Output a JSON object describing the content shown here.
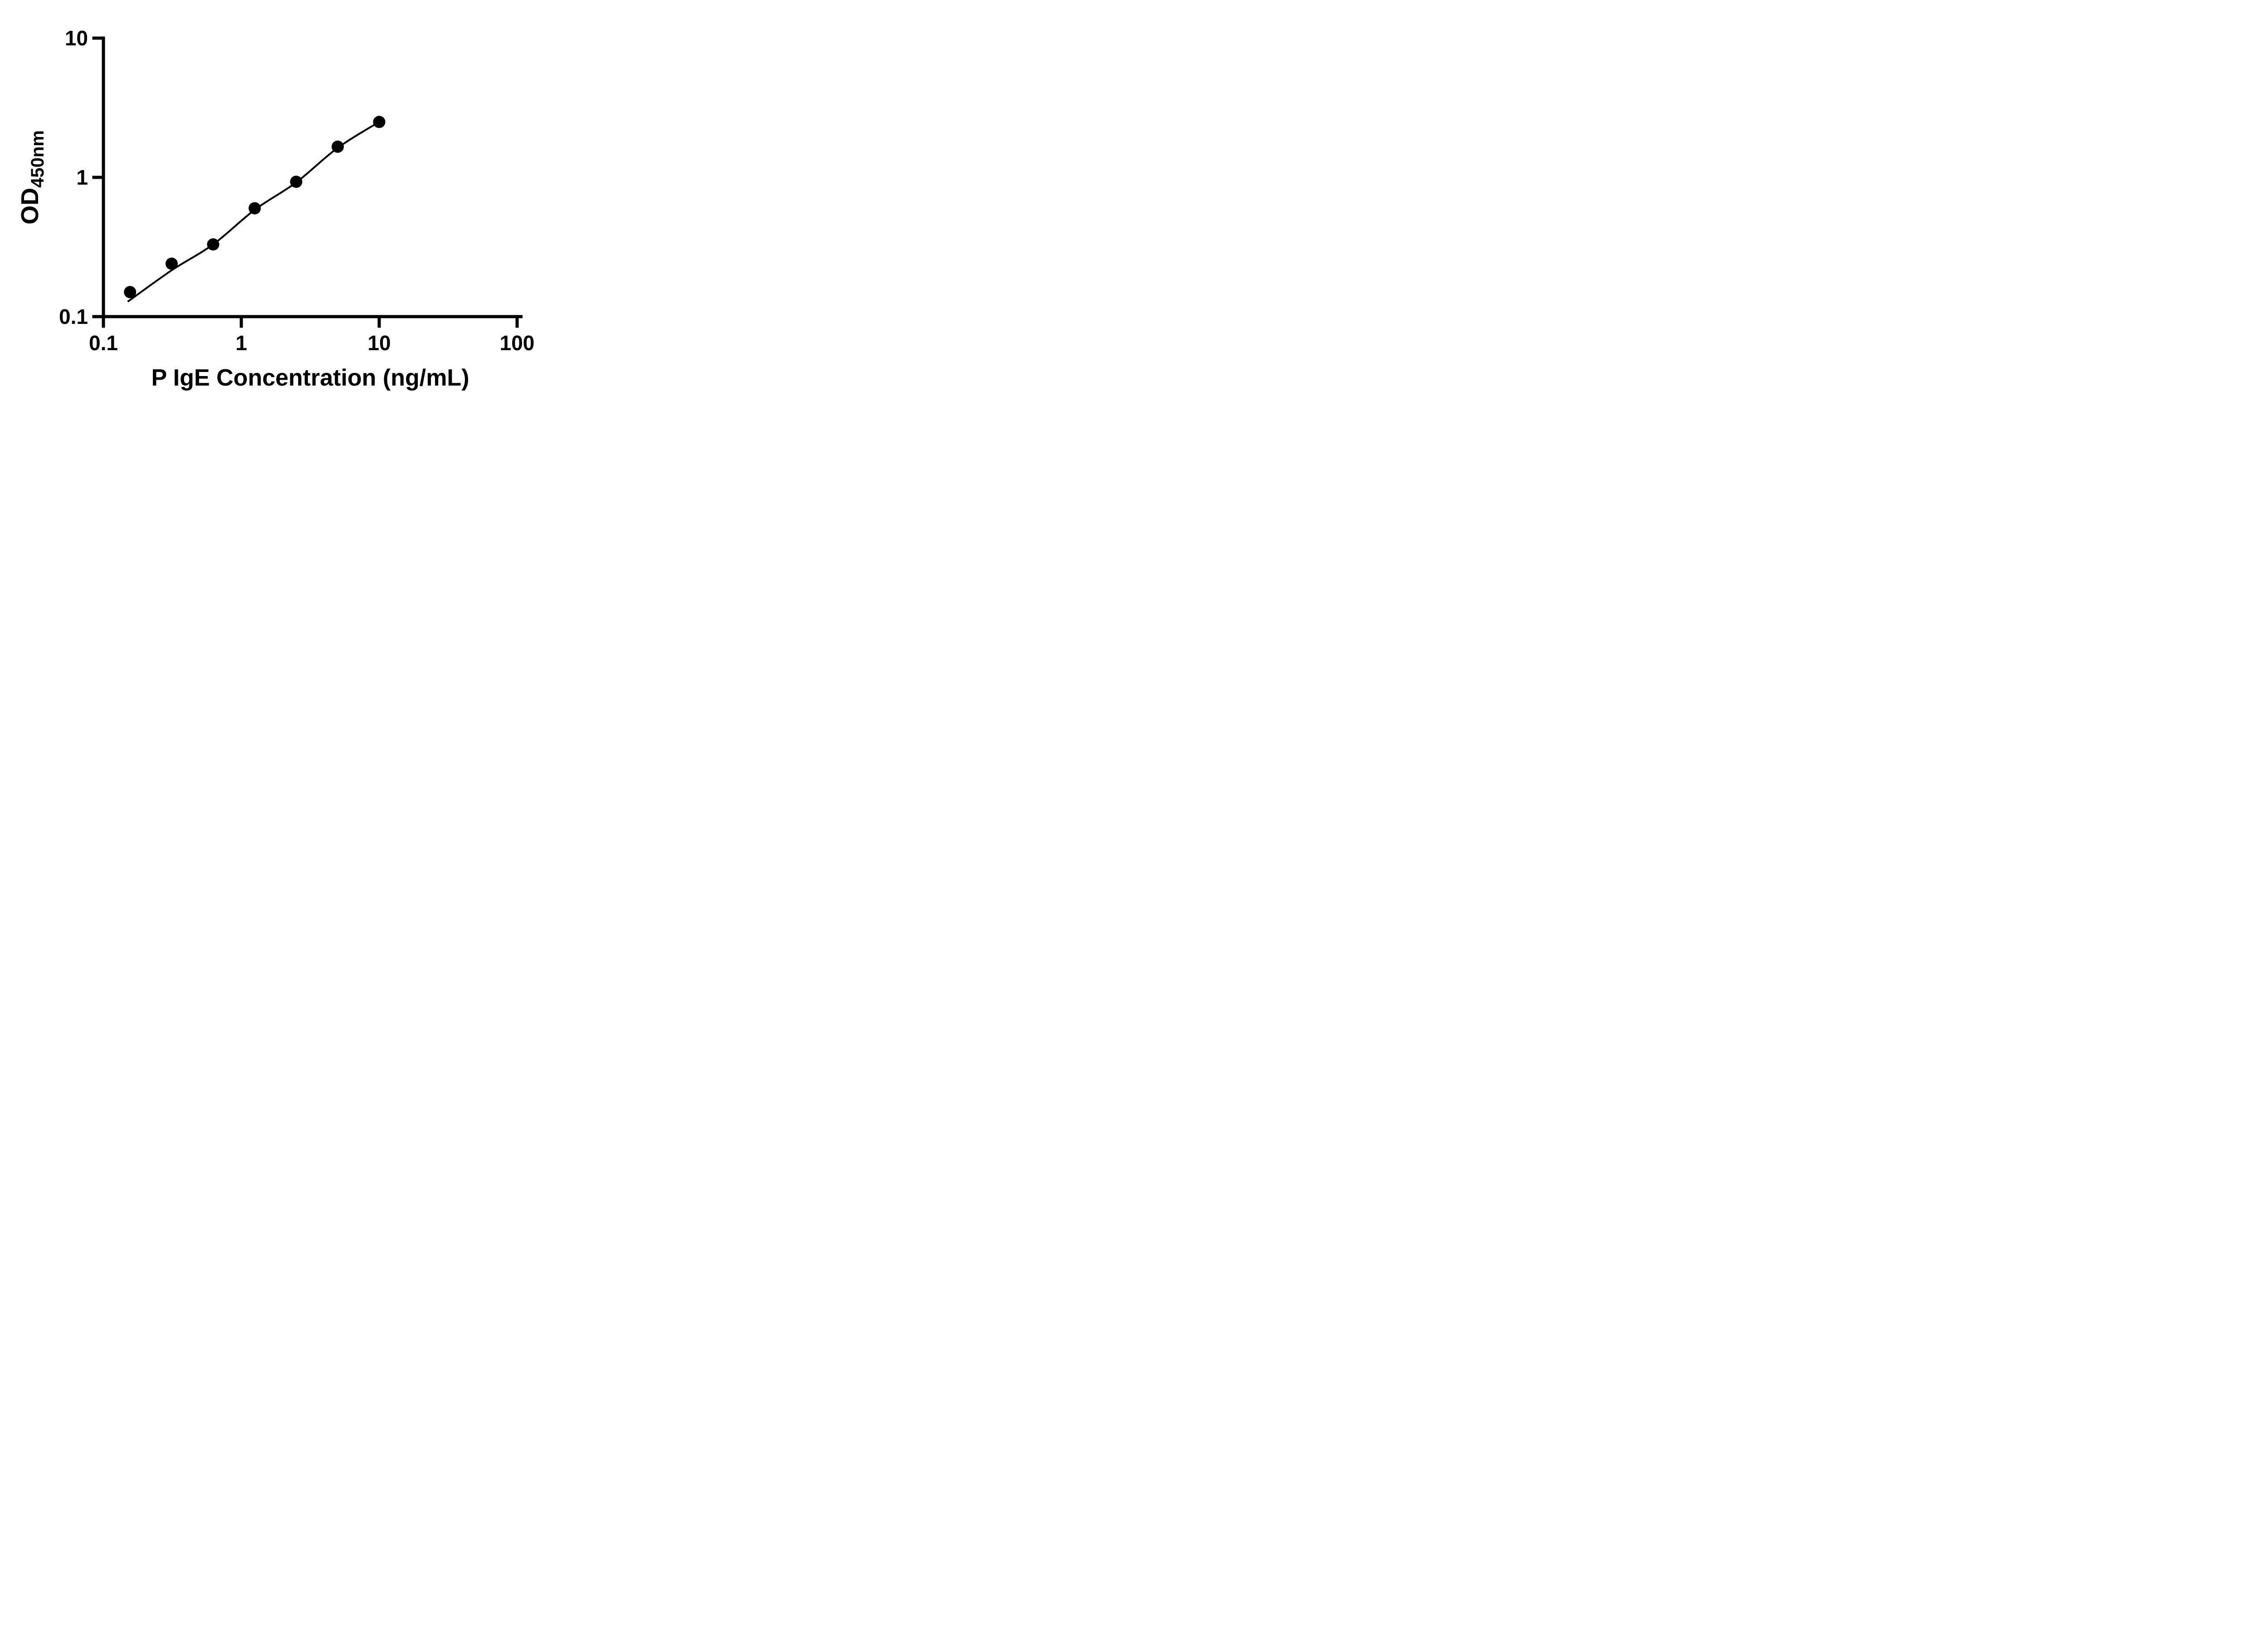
{
  "chart_data": {
    "type": "scatter",
    "title": "",
    "xlabel": "P IgE Concentration (ng/mL)",
    "ylabel": "OD",
    "ylabel_subscript": "450nm",
    "xscale": "log",
    "yscale": "log",
    "xlim": [
      0.1,
      100
    ],
    "ylim": [
      0.1,
      10
    ],
    "x_ticks": [
      0.1,
      1,
      10,
      100
    ],
    "x_tick_labels": [
      "0.1",
      "1",
      "10",
      "100"
    ],
    "y_ticks": [
      0.1,
      1,
      10
    ],
    "y_tick_labels": [
      "0.1",
      "1",
      "10"
    ],
    "grid": false,
    "legend": null,
    "series": [
      {
        "name": "standard-curve-points",
        "type": "scatter",
        "marker": "circle",
        "color": "#000000",
        "x": [
          0.156,
          0.3125,
          0.625,
          1.25,
          2.5,
          5,
          10
        ],
        "y": [
          0.15,
          0.24,
          0.33,
          0.6,
          0.93,
          1.66,
          2.5
        ]
      },
      {
        "name": "fit-curve",
        "type": "line",
        "color": "#000000",
        "x": [
          0.15,
          0.3125,
          0.625,
          1.25,
          2.5,
          5,
          10
        ],
        "y": [
          0.128,
          0.215,
          0.33,
          0.585,
          0.92,
          1.63,
          2.5
        ]
      }
    ],
    "colors": {
      "foreground": "#000000",
      "background": "#ffffff"
    }
  }
}
